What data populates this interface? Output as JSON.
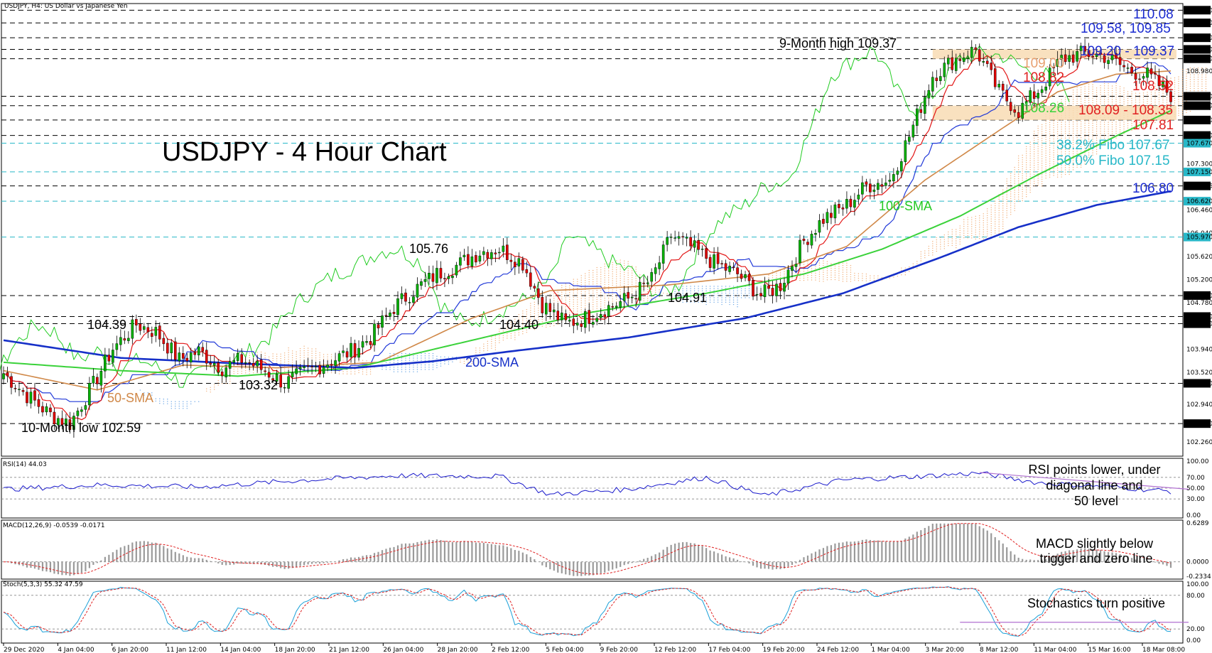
{
  "header": {
    "symbol_line": "USDJPY, H4: US Dollar vs Japanese Yen",
    "chart_title": "USDJPY - 4 Hour Chart"
  },
  "colors": {
    "candle_bull": "#00b000",
    "candle_bear": "#e00000",
    "sma50": "#d08848",
    "sma100": "#3ad23a",
    "sma200": "#1630c8",
    "tenkan": "#e21616",
    "kijun": "#2038d8",
    "chikou": "#22cc22",
    "cloud_bull": "#f2b07a",
    "cloud_bear": "#6aa6e6",
    "rsi": "#1a1acc",
    "macd_hist": "#9a9a9a",
    "signal": "#e02020",
    "stoch_k": "#1aa0d8",
    "stoch_d": "#e02020",
    "trendline": "#b070d0",
    "zone": "#f8dcb4",
    "level_black": "#000000",
    "level_cyan": "#28b8c8"
  },
  "chart_data": [
    {
      "type": "candlestick",
      "title": "USDJPY - 4 Hour Chart",
      "ylim": [
        102.0,
        110.2
      ],
      "y_ticks": [
        "110.080",
        "109.850",
        "109.580",
        "109.370",
        "109.200",
        "108.980",
        "108.520",
        "108.350",
        "108.090",
        "107.810",
        "107.670",
        "107.300",
        "107.150",
        "106.896",
        "106.620",
        "106.460",
        "106.040",
        "105.970",
        "105.620",
        "105.200",
        "104.910",
        "104.780",
        "104.530",
        "104.400",
        "103.940",
        "103.520",
        "103.320",
        "102.940",
        "102.590",
        "102.260"
      ],
      "x_ticks": [
        "29 Dec 2020",
        "4 Jan 04:00",
        "6 Jan 20:00",
        "11 Jan 12:00",
        "14 Jan 04:00",
        "18 Jan 20:00",
        "21 Jan 12:00",
        "26 Jan 04:00",
        "28 Jan 20:00",
        "2 Feb 12:00",
        "5 Feb 04:00",
        "9 Feb 20:00",
        "12 Feb 12:00",
        "17 Feb 04:00",
        "19 Feb 20:00",
        "24 Feb 12:00",
        "1 Mar 04:00",
        "3 Mar 20:00",
        "8 Mar 12:00",
        "11 Mar 04:00",
        "15 Mar 16:00",
        "18 Mar 08:00"
      ],
      "highlighted_levels": [
        "110.080",
        "109.850",
        "109.580",
        "109.370",
        "109.200",
        "108.520",
        "108.350",
        "108.090",
        "107.810",
        "107.670",
        "107.150",
        "106.896",
        "106.620",
        "105.970",
        "104.910",
        "104.530",
        "104.400",
        "103.320",
        "102.590"
      ],
      "price_path": [
        [
          0,
          103.5
        ],
        [
          6,
          103.1
        ],
        [
          12,
          102.75
        ],
        [
          17,
          102.59
        ],
        [
          23,
          103.3
        ],
        [
          28,
          103.95
        ],
        [
          34,
          104.39
        ],
        [
          39,
          104.25
        ],
        [
          45,
          103.75
        ],
        [
          50,
          103.9
        ],
        [
          56,
          103.6
        ],
        [
          61,
          103.75
        ],
        [
          67,
          103.55
        ],
        [
          72,
          103.32
        ],
        [
          78,
          103.55
        ],
        [
          83,
          103.7
        ],
        [
          89,
          103.9
        ],
        [
          94,
          104.15
        ],
        [
          100,
          104.7
        ],
        [
          105,
          105.0
        ],
        [
          111,
          105.3
        ],
        [
          116,
          105.45
        ],
        [
          122,
          105.7
        ],
        [
          127,
          105.76
        ],
        [
          133,
          105.5
        ],
        [
          138,
          104.75
        ],
        [
          144,
          104.4
        ],
        [
          149,
          104.5
        ],
        [
          155,
          104.7
        ],
        [
          160,
          104.85
        ],
        [
          166,
          105.2
        ],
        [
          171,
          106.0
        ],
        [
          177,
          105.75
        ],
        [
          182,
          105.5
        ],
        [
          188,
          105.3
        ],
        [
          194,
          104.91
        ],
        [
          199,
          105.1
        ],
        [
          205,
          105.9
        ],
        [
          210,
          106.3
        ],
        [
          216,
          106.55
        ],
        [
          221,
          106.9
        ],
        [
          227,
          107.0
        ],
        [
          232,
          107.8
        ],
        [
          238,
          108.9
        ],
        [
          244,
          109.2
        ],
        [
          249,
          109.37
        ],
        [
          255,
          108.6
        ],
        [
          260,
          108.25
        ],
        [
          266,
          108.7
        ],
        [
          271,
          109.2
        ],
        [
          277,
          109.3
        ],
        [
          282,
          109.25
        ],
        [
          288,
          109.0
        ],
        [
          293,
          108.9
        ],
        [
          299,
          108.55
        ]
      ],
      "series": [
        {
          "name": "50-SMA",
          "values": [
            [
              0,
              103.55
            ],
            [
              24,
              103.2
            ],
            [
              46,
              103.65
            ],
            [
              70,
              103.6
            ],
            [
              96,
              103.7
            ],
            [
              120,
              104.5
            ],
            [
              140,
              105.0
            ],
            [
              170,
              105.1
            ],
            [
              196,
              105.3
            ],
            [
              216,
              105.8
            ],
            [
              236,
              107.0
            ],
            [
              255,
              107.9
            ],
            [
              270,
              108.6
            ],
            [
              285,
              108.92
            ],
            [
              299,
              108.98
            ]
          ]
        },
        {
          "name": "100-SMA",
          "values": [
            [
              0,
              103.7
            ],
            [
              30,
              103.55
            ],
            [
              60,
              103.45
            ],
            [
              90,
              103.6
            ],
            [
              120,
              104.1
            ],
            [
              150,
              104.6
            ],
            [
              180,
              104.95
            ],
            [
              205,
              105.3
            ],
            [
              225,
              105.75
            ],
            [
              245,
              106.35
            ],
            [
              265,
              107.1
            ],
            [
              285,
              107.8
            ],
            [
              299,
              108.26
            ]
          ]
        },
        {
          "name": "200-SMA",
          "values": [
            [
              0,
              104.1
            ],
            [
              30,
              103.78
            ],
            [
              60,
              103.68
            ],
            [
              90,
              103.6
            ],
            [
              110,
              103.72
            ],
            [
              130,
              103.9
            ],
            [
              160,
              104.15
            ],
            [
              190,
              104.5
            ],
            [
              215,
              104.95
            ],
            [
              240,
              105.6
            ],
            [
              260,
              106.15
            ],
            [
              280,
              106.55
            ],
            [
              299,
              106.8
            ]
          ]
        }
      ],
      "annotations": [
        {
          "text": "9-Month high 109.37"
        },
        {
          "text": "10-Month low 102.59"
        },
        {
          "text": "104.39"
        },
        {
          "text": "103.32"
        },
        {
          "text": "105.76"
        },
        {
          "text": "104.40"
        },
        {
          "text": "104.91"
        },
        {
          "text": "50-SMA"
        },
        {
          "text": "100-SMA"
        },
        {
          "text": "200-SMA"
        },
        {
          "text": "110.08"
        },
        {
          "text": "109.58, 109.85"
        },
        {
          "text": "109.20 - 109.37"
        },
        {
          "text": "109.00"
        },
        {
          "text": "108.82"
        },
        {
          "text": "108.52"
        },
        {
          "text": "108.26"
        },
        {
          "text": "108.09 - 108.35"
        },
        {
          "text": "107.81"
        },
        {
          "text": "38.2% Fibo 107.67"
        },
        {
          "text": "50.0% Fibo 107.15"
        },
        {
          "text": "106.80"
        }
      ]
    },
    {
      "type": "line",
      "title": "RSI(14) 44.03",
      "ylim": [
        0,
        100
      ],
      "y_ticks": [
        "100.00",
        "70.00",
        "50.00",
        "30.00",
        "0.00"
      ],
      "series": [
        {
          "values": [
            [
              0,
              48
            ],
            [
              25,
              56
            ],
            [
              50,
              52
            ],
            [
              75,
              64
            ],
            [
              100,
              73
            ],
            [
              127,
              72
            ],
            [
              140,
              38
            ],
            [
              160,
              48
            ],
            [
              180,
              70
            ],
            [
              195,
              36
            ],
            [
              215,
              65
            ],
            [
              235,
              72
            ],
            [
              250,
              78
            ],
            [
              265,
              60
            ],
            [
              285,
              52
            ],
            [
              299,
              44
            ]
          ]
        }
      ],
      "annotation": "RSI points lower, under diagonal line and 50 level"
    },
    {
      "type": "bar",
      "title": "MACD(12,26,9) -0.0539 -0.0171",
      "ylim": [
        -0.2334,
        0.6289
      ],
      "y_ticks": [
        "0.6289",
        "0.0000",
        "-0.2334"
      ],
      "annotation": "MACD slightly below trigger and zero line"
    },
    {
      "type": "line",
      "title": "Stoch(5,3,3) 55.32 47.59",
      "ylim": [
        0,
        100
      ],
      "y_ticks": [
        "100.00",
        "80.00",
        "20.00",
        "0.00"
      ],
      "annotation": "Stochastics turn positive"
    }
  ]
}
